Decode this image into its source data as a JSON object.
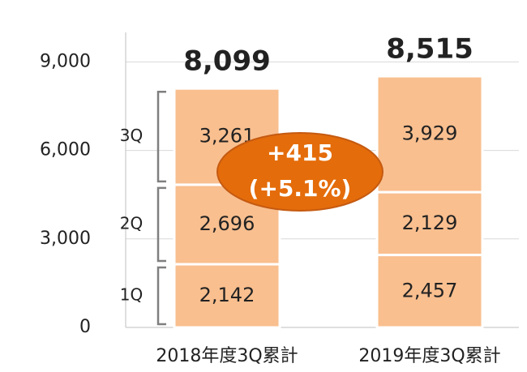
{
  "chart_data": {
    "type": "stacked_bar",
    "categories": [
      "2018年度3Q累計",
      "2019年度3Q累計"
    ],
    "series": [
      {
        "name": "1Q",
        "color": "#f9bf8f",
        "values": [
          2142,
          2457
        ],
        "value_labels": [
          "2,142",
          "2,457"
        ]
      },
      {
        "name": "2Q",
        "color": "#f9bf8f",
        "values": [
          2696,
          2129
        ],
        "value_labels": [
          "2,696",
          "2,129"
        ]
      },
      {
        "name": "3Q",
        "color": "#f9bf8f",
        "values": [
          3261,
          3929
        ],
        "value_labels": [
          "3,261",
          "3,929"
        ]
      }
    ],
    "totals": [
      8099,
      8515
    ],
    "total_labels": [
      "8,099",
      "8,515"
    ],
    "annotation": {
      "lines": [
        "+415",
        "(+5.1%)"
      ],
      "color": "#e46c0a"
    },
    "ylim": [
      0,
      10000
    ],
    "yticks": [
      0,
      {
        "value": 3000,
        "label": "3,000"
      },
      {
        "value": 6000,
        "label": "6,000"
      },
      {
        "value": 9000,
        "label": "9,000"
      }
    ],
    "grid": true
  }
}
